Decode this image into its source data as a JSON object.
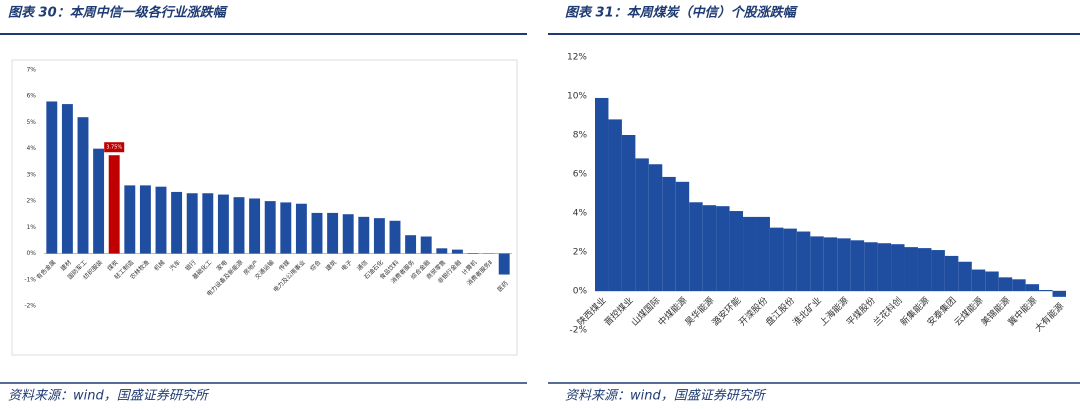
{
  "chart_data": [
    {
      "type": "bar",
      "title": "图表 30：本周中信一级各行业涨跌幅",
      "source": "资料来源：wind，国盛证券研究所",
      "categories": [
        "有色金属",
        "建材",
        "国防军工",
        "纺织服装",
        "煤炭",
        "轻工制造",
        "农林牧渔",
        "机械",
        "汽车",
        "银行",
        "基础化工",
        "家电",
        "电力设备及新能源",
        "房地产",
        "交通运输",
        "传媒",
        "电力及公用事业",
        "综合",
        "建筑",
        "电子",
        "通信",
        "石油石化",
        "食品饮料",
        "消费者服务",
        "综合金融",
        "商贸零售",
        "非银行金融",
        "计算机",
        "消费者服务Ⅱ",
        "医药"
      ],
      "values": [
        5.8,
        5.7,
        5.2,
        4.0,
        3.75,
        2.6,
        2.6,
        2.55,
        2.35,
        2.3,
        2.3,
        2.25,
        2.15,
        2.1,
        2.0,
        1.95,
        1.9,
        1.55,
        1.55,
        1.5,
        1.4,
        1.35,
        1.25,
        0.7,
        0.65,
        0.2,
        0.15,
        0.02,
        0.01,
        -0.8
      ],
      "value_labels": [
        null,
        null,
        null,
        null,
        "3.75%",
        null,
        null,
        null,
        null,
        null,
        null,
        null,
        null,
        null,
        null,
        null,
        null,
        null,
        null,
        null,
        null,
        null,
        null,
        null,
        null,
        null,
        null,
        null,
        null,
        null
      ],
      "colors": [
        "#1f4ea1",
        "#1f4ea1",
        "#1f4ea1",
        "#1f4ea1",
        "#c00000",
        "#1f4ea1",
        "#1f4ea1",
        "#1f4ea1",
        "#1f4ea1",
        "#1f4ea1",
        "#1f4ea1",
        "#1f4ea1",
        "#1f4ea1",
        "#1f4ea1",
        "#1f4ea1",
        "#1f4ea1",
        "#1f4ea1",
        "#1f4ea1",
        "#1f4ea1",
        "#1f4ea1",
        "#1f4ea1",
        "#1f4ea1",
        "#1f4ea1",
        "#1f4ea1",
        "#1f4ea1",
        "#1f4ea1",
        "#1f4ea1",
        "#1f4ea1",
        "#1f4ea1",
        "#1f4ea1"
      ],
      "ylim": [
        -2,
        7
      ],
      "yticks": [
        {
          "value": -2,
          "label": "-2%"
        },
        {
          "value": -1,
          "label": "-1%"
        },
        {
          "value": 0,
          "label": "0%"
        },
        {
          "value": 1,
          "label": "1%"
        },
        {
          "value": 2,
          "label": "2%"
        },
        {
          "value": 3,
          "label": "3%"
        },
        {
          "value": 4,
          "label": "4%"
        },
        {
          "value": 5,
          "label": "5%"
        },
        {
          "value": 6,
          "label": "6%"
        },
        {
          "value": 7,
          "label": "7%"
        }
      ]
    },
    {
      "type": "bar",
      "title": "图表 31：本周煤炭（中信）个股涨跌幅",
      "source": "资料来源：wind，国盛证券研究所",
      "categories": [
        "陕西煤业",
        null,
        "晋控煤业",
        null,
        "山煤国际",
        null,
        "中煤能源",
        null,
        "昊华能源",
        null,
        "潞安环能",
        null,
        "开滦股份",
        null,
        "盘江股份",
        null,
        "淮北矿业",
        null,
        "上海能源",
        null,
        "平煤股份",
        null,
        "兰花科创",
        null,
        "新集能源",
        null,
        "安泰集团",
        null,
        "云煤能源",
        null,
        "美锦能源",
        null,
        "冀中能源",
        null,
        "大有能源"
      ],
      "values": [
        9.9,
        8.8,
        8.0,
        6.8,
        6.5,
        5.85,
        5.6,
        4.55,
        4.4,
        4.35,
        4.1,
        3.8,
        3.8,
        3.25,
        3.2,
        3.05,
        2.8,
        2.75,
        2.7,
        2.6,
        2.5,
        2.45,
        2.4,
        2.25,
        2.2,
        2.1,
        1.8,
        1.5,
        1.1,
        1.0,
        0.7,
        0.6,
        0.35,
        0.05,
        -0.3
      ],
      "color": "#1f4ea1",
      "ylim": [
        -2,
        12
      ],
      "yticks": [
        {
          "value": -2,
          "label": "-2%"
        },
        {
          "value": 0,
          "label": "0%"
        },
        {
          "value": 2,
          "label": "2%"
        },
        {
          "value": 4,
          "label": "4%"
        },
        {
          "value": 6,
          "label": "6%"
        },
        {
          "value": 8,
          "label": "8%"
        },
        {
          "value": 10,
          "label": "10%"
        },
        {
          "value": 12,
          "label": "12%"
        }
      ]
    }
  ]
}
